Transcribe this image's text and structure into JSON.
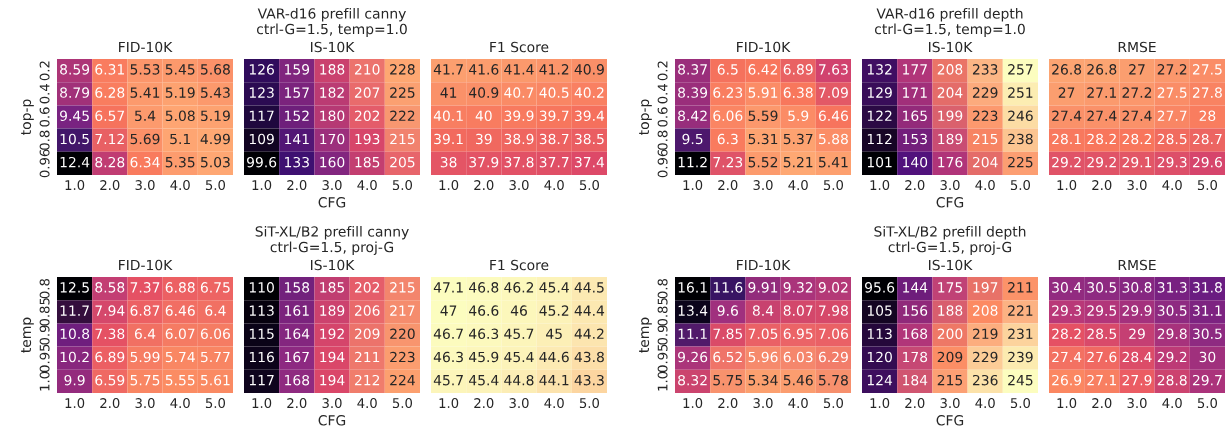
{
  "chart_data": [
    {
      "type": "heatmap",
      "title": "FID-10K",
      "ylabel": "top-p",
      "categories": [
        "1.0",
        "2.0",
        "3.0",
        "4.0",
        "5.0"
      ],
      "y_categories": [
        "0.2",
        "0.4",
        "0.6",
        "0.8",
        "0.96"
      ],
      "data_labels": true,
      "colors": [
        "#fea873",
        "#f8765c",
        "#d3436e",
        "#7b2382",
        "#2c115f",
        "#000004"
      ],
      "cells": [
        [
          8.59,
          6.31,
          5.53,
          5.45,
          5.68
        ],
        [
          8.79,
          6.28,
          5.41,
          5.19,
          5.43
        ],
        [
          9.45,
          6.57,
          5.4,
          5.08,
          5.19
        ],
        [
          10.5,
          7.12,
          5.69,
          5.1,
          4.99
        ],
        [
          12.4,
          8.28,
          6.34,
          5.35,
          5.03
        ]
      ]
    },
    {
      "type": "heatmap",
      "title": "IS-10K",
      "subtitle": "VAR-d16 prefill canny\nctrl-G=1.5, temp=1.0",
      "xlabel": "CFG",
      "tick_labels": "x",
      "categories": [
        "1.0",
        "2.0",
        "3.0",
        "4.0",
        "5.0"
      ],
      "y_categories": [
        "0.2",
        "0.4",
        "0.6",
        "0.8",
        "0.96"
      ],
      "data_labels": true,
      "colors": [
        "#000004",
        "#3b0f70",
        "#8c2981",
        "#de4968",
        "#fea772"
      ],
      "cells": [
        [
          126,
          159,
          188,
          210,
          228
        ],
        [
          123,
          157,
          182,
          207,
          225
        ],
        [
          117,
          152,
          180,
          202,
          222
        ],
        [
          109,
          141,
          170,
          193,
          215
        ],
        [
          99.6,
          133,
          160,
          185,
          205
        ]
      ]
    },
    {
      "type": "heatmap",
      "title": "F1 Score",
      "tick_labels": "x",
      "categories": [
        "1.0",
        "2.0",
        "3.0",
        "4.0",
        "5.0"
      ],
      "y_categories": [
        "0.2",
        "0.4",
        "0.6",
        "0.8",
        "0.96"
      ],
      "data_labels": true,
      "colors": [
        "#dd4968",
        "#f7735c",
        "#fc9f6f"
      ],
      "cells": [
        [
          41.7,
          41.6,
          41.4,
          41.2,
          40.9
        ],
        [
          41,
          40.9,
          40.7,
          40.5,
          40.2
        ],
        [
          40.1,
          40,
          39.9,
          39.7,
          39.4
        ],
        [
          39.1,
          39,
          38.9,
          38.7,
          38.5
        ],
        [
          38,
          37.9,
          37.8,
          37.7,
          37.4
        ]
      ]
    },
    {
      "type": "heatmap",
      "title": "FID-10K",
      "ylabel": "top-p",
      "categories": [
        "1.0",
        "2.0",
        "3.0",
        "4.0",
        "5.0"
      ],
      "y_categories": [
        "0.2",
        "0.4",
        "0.6",
        "0.8",
        "0.96"
      ],
      "data_labels": true,
      "colors": [
        "#fea873",
        "#f8765c",
        "#d3436e",
        "#7b2382",
        "#2c115f",
        "#000004"
      ],
      "cells": [
        [
          8.37,
          6.5,
          6.42,
          6.89,
          7.63
        ],
        [
          8.39,
          6.23,
          5.91,
          6.38,
          7.09
        ],
        [
          8.42,
          6.06,
          5.59,
          5.9,
          6.46
        ],
        [
          9.5,
          6.3,
          5.31,
          5.37,
          5.88
        ],
        [
          11.2,
          7.23,
          5.52,
          5.21,
          5.41
        ]
      ]
    },
    {
      "type": "heatmap",
      "title": "IS-10K",
      "subtitle": "VAR-d16 prefill depth\nctrl-G=1.5, temp=1.0",
      "xlabel": "CFG",
      "tick_labels": "x",
      "categories": [
        "1.0",
        "2.0",
        "3.0",
        "4.0",
        "5.0"
      ],
      "y_categories": [
        "0.2",
        "0.4",
        "0.6",
        "0.8",
        "0.96"
      ],
      "data_labels": true,
      "colors": [
        "#000004",
        "#51127c",
        "#b73779",
        "#fc8961",
        "#fcfdbf"
      ],
      "cells": [
        [
          132,
          177,
          208,
          233,
          257
        ],
        [
          129,
          171,
          204,
          229,
          251
        ],
        [
          122,
          165,
          199,
          223,
          246
        ],
        [
          112,
          153,
          189,
          215,
          238
        ],
        [
          101,
          140,
          176,
          204,
          225
        ]
      ]
    },
    {
      "type": "heatmap",
      "title": "RMSE",
      "tick_labels": "x",
      "categories": [
        "1.0",
        "2.0",
        "3.0",
        "4.0",
        "5.0"
      ],
      "y_categories": [
        "0.2",
        "0.4",
        "0.6",
        "0.8",
        "0.96"
      ],
      "data_labels": true,
      "colors": [
        "#fca472",
        "#f8765c",
        "#d6456c"
      ],
      "cells": [
        [
          26.8,
          26.8,
          27,
          27.2,
          27.5
        ],
        [
          27,
          27.1,
          27.2,
          27.5,
          27.8
        ],
        [
          27.4,
          27.4,
          27.4,
          27.7,
          28
        ],
        [
          28.1,
          28.2,
          28.2,
          28.5,
          28.7
        ],
        [
          29.2,
          29.2,
          29.1,
          29.3,
          29.6
        ]
      ]
    },
    {
      "type": "heatmap",
      "title": "FID-10K",
      "ylabel": "temp",
      "categories": [
        "1.0",
        "2.0",
        "3.0",
        "4.0",
        "5.0"
      ],
      "y_categories": [
        "0.8",
        "0.85",
        "0.9",
        "0.95",
        "1.0"
      ],
      "data_labels": true,
      "colors": [
        "#fb8c63",
        "#e75263",
        "#b73779",
        "#721f81",
        "#000004"
      ],
      "cells": [
        [
          12.5,
          8.58,
          7.37,
          6.88,
          6.75
        ],
        [
          11.7,
          7.94,
          6.87,
          6.46,
          6.4
        ],
        [
          10.8,
          7.38,
          6.4,
          6.07,
          6.06
        ],
        [
          10.2,
          6.89,
          5.99,
          5.74,
          5.77
        ],
        [
          9.9,
          6.59,
          5.75,
          5.55,
          5.61
        ]
      ]
    },
    {
      "type": "heatmap",
      "title": "IS-10K",
      "subtitle": "SiT-XL/B2 prefill canny\nctrl-G=1.5, proj-G",
      "xlabel": "CFG",
      "tick_labels": "x",
      "categories": [
        "1.0",
        "2.0",
        "3.0",
        "4.0",
        "5.0"
      ],
      "y_categories": [
        "0.8",
        "0.85",
        "0.9",
        "0.95",
        "1.0"
      ],
      "data_labels": true,
      "colors": [
        "#000004",
        "#3b0f70",
        "#8c2981",
        "#de4968",
        "#fca06f"
      ],
      "cells": [
        [
          110,
          158,
          185,
          202,
          215
        ],
        [
          113,
          161,
          189,
          206,
          217
        ],
        [
          115,
          164,
          192,
          209,
          220
        ],
        [
          116,
          167,
          194,
          211,
          223
        ],
        [
          117,
          168,
          194,
          212,
          224
        ]
      ]
    },
    {
      "type": "heatmap",
      "title": "F1 Score",
      "tick_labels": "x",
      "categories": [
        "1.0",
        "2.0",
        "3.0",
        "4.0",
        "5.0"
      ],
      "y_categories": [
        "0.8",
        "0.85",
        "0.9",
        "0.95",
        "1.0"
      ],
      "data_labels": true,
      "colors": [
        "#fcd5a0",
        "#fce6b0",
        "#fcf2b8",
        "#fcf8bc",
        "#fcfdbf"
      ],
      "cells": [
        [
          47.1,
          46.8,
          46.2,
          45.4,
          44.5
        ],
        [
          47,
          46.6,
          46,
          45.2,
          44.4
        ],
        [
          46.7,
          46.3,
          45.7,
          45,
          44.2
        ],
        [
          46.3,
          45.9,
          45.4,
          44.6,
          43.8
        ],
        [
          45.7,
          45.4,
          44.8,
          44.1,
          43.3
        ]
      ]
    },
    {
      "type": "heatmap",
      "title": "FID-10K",
      "ylabel": "temp",
      "categories": [
        "1.0",
        "2.0",
        "3.0",
        "4.0",
        "5.0"
      ],
      "y_categories": [
        "0.8",
        "0.85",
        "0.9",
        "0.95",
        "1.0"
      ],
      "data_labels": true,
      "colors": [
        "#fca06f",
        "#e55064",
        "#9f2f7f",
        "#2d1160",
        "#000004",
        "#000004"
      ],
      "cells": [
        [
          16.1,
          11.6,
          9.91,
          9.32,
          9.02
        ],
        [
          13.4,
          9.6,
          8.4,
          8.07,
          7.98
        ],
        [
          11.1,
          7.85,
          7.05,
          6.95,
          7.06
        ],
        [
          9.26,
          6.52,
          5.96,
          6.03,
          6.29
        ],
        [
          8.32,
          5.75,
          5.34,
          5.46,
          5.78
        ]
      ]
    },
    {
      "type": "heatmap",
      "title": "IS-10K",
      "subtitle": "SiT-XL/B2 prefill depth\nctrl-G=1.5, proj-G",
      "xlabel": "CFG",
      "tick_labels": "x",
      "categories": [
        "1.0",
        "2.0",
        "3.0",
        "4.0",
        "5.0"
      ],
      "y_categories": [
        "0.8",
        "0.85",
        "0.9",
        "0.95",
        "1.0"
      ],
      "data_labels": true,
      "colors": [
        "#000004",
        "#51127c",
        "#b73779",
        "#fc8961",
        "#fcfdbf"
      ],
      "cells": [
        [
          95.6,
          144,
          175,
          197,
          211
        ],
        [
          105,
          156,
          188,
          208,
          221
        ],
        [
          113,
          168,
          200,
          219,
          231
        ],
        [
          120,
          178,
          209,
          229,
          239
        ],
        [
          124,
          184,
          215,
          236,
          245
        ]
      ]
    },
    {
      "type": "heatmap",
      "title": "RMSE",
      "tick_labels": "x",
      "categories": [
        "1.0",
        "2.0",
        "3.0",
        "4.0",
        "5.0"
      ],
      "y_categories": [
        "0.8",
        "0.85",
        "0.9",
        "0.95",
        "1.0"
      ],
      "data_labels": true,
      "colors": [
        "#fb8761",
        "#e75263",
        "#b73779",
        "#8c2981",
        "#6a1c81"
      ],
      "cells": [
        [
          30.4,
          30.5,
          30.8,
          31.3,
          31.8
        ],
        [
          29.3,
          29.5,
          29.9,
          30.5,
          31.1
        ],
        [
          28.2,
          28.5,
          29,
          29.8,
          30.5
        ],
        [
          27.4,
          27.6,
          28.4,
          29.2,
          30
        ],
        [
          26.9,
          27.1,
          27.9,
          28.8,
          29.7
        ]
      ]
    }
  ]
}
